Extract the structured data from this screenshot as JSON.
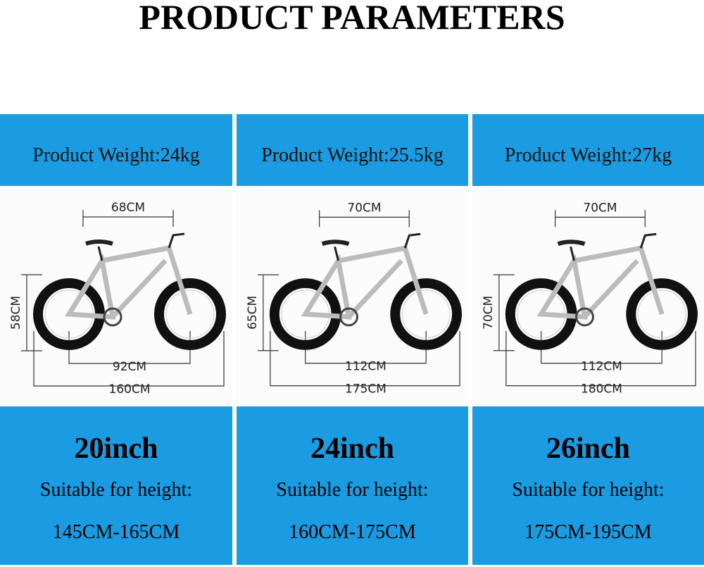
{
  "title": "PRODUCT PARAMETERS",
  "brand_color": "#1b9ce2",
  "models": [
    {
      "weight": "Product Weight:24kg",
      "size": "20inch",
      "suitable": "Suitable for height:",
      "range": "145CM-165CM",
      "dims": {
        "top": "68CM",
        "height": "58CM",
        "wheelbase": "92CM",
        "length": "160CM"
      }
    },
    {
      "weight": "Product Weight:25.5kg",
      "size": "24inch",
      "suitable": "Suitable for height:",
      "range": "160CM-175CM",
      "dims": {
        "top": "70CM",
        "height": "65CM",
        "wheelbase": "112CM",
        "length": "175CM"
      }
    },
    {
      "weight": "Product Weight:27kg",
      "size": "26inch",
      "suitable": "Suitable for height:",
      "range": "175CM-195CM",
      "dims": {
        "top": "70CM",
        "height": "70CM",
        "wheelbase": "112CM",
        "length": "180CM"
      }
    }
  ]
}
